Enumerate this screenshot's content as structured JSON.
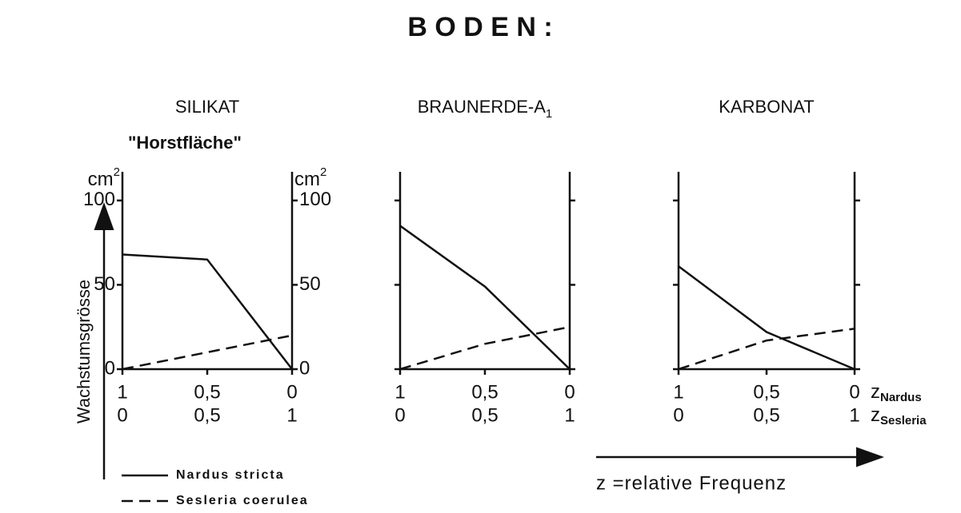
{
  "title": "B O D E N :",
  "y_label": "Wachstumsgrösse",
  "y_quantity": "\"Horstfläche\"",
  "x_axis_names": [
    {
      "main": "z",
      "sub": "Nardus"
    },
    {
      "main": "z",
      "sub": "Sesleria"
    }
  ],
  "x_note": "z =relative Frequenz",
  "chart_data": [
    {
      "type": "line",
      "title": "SILIKAT",
      "y_unit": "cm",
      "y_unit_sup": "2",
      "ytick_labels": true,
      "x": [
        1,
        0.5,
        0
      ],
      "xlim": [
        1,
        0
      ],
      "xticks": [
        1,
        {
          "value": 0.5,
          "label": "0,5"
        },
        0
      ],
      "x2": [
        0,
        0.5,
        1
      ],
      "x2lim": [
        0,
        1
      ],
      "x2ticks": [
        0,
        {
          "value": 0.5,
          "label": "0,5"
        },
        1
      ],
      "ylim": [
        0,
        117
      ],
      "yticks": [
        0,
        50,
        100
      ],
      "series": [
        {
          "name": "Nardus stricta",
          "dash": "solid",
          "color": "#111",
          "values": [
            68,
            65,
            0
          ]
        },
        {
          "name": "Sesleria coerulea",
          "dash": "dashed",
          "color": "#111",
          "values": [
            0,
            10,
            20
          ]
        }
      ]
    },
    {
      "type": "line",
      "title": "BRAUNERDE-A",
      "title_sub": "1",
      "ytick_labels": false,
      "x": [
        1,
        0.5,
        0
      ],
      "xlim": [
        1,
        0
      ],
      "xticks": [
        1,
        {
          "value": 0.5,
          "label": "0,5"
        },
        0
      ],
      "x2": [
        0,
        0.5,
        1
      ],
      "x2lim": [
        0,
        1
      ],
      "x2ticks": [
        0,
        {
          "value": 0.5,
          "label": "0,5"
        },
        1
      ],
      "ylim": [
        0,
        117
      ],
      "yticks": [
        0,
        50,
        100
      ],
      "series": [
        {
          "dash": "solid",
          "color": "#111",
          "values": [
            85,
            49,
            0
          ]
        },
        {
          "dash": "dashed",
          "color": "#111",
          "values": [
            0,
            15,
            25
          ]
        }
      ]
    },
    {
      "type": "line",
      "title": "KARBONAT",
      "ytick_labels": false,
      "x": [
        1,
        0.5,
        0
      ],
      "xlim": [
        1,
        0
      ],
      "xticks": [
        1,
        {
          "value": 0.5,
          "label": "0,5"
        },
        0
      ],
      "x2": [
        0,
        0.5,
        1
      ],
      "x2lim": [
        0,
        1
      ],
      "x2ticks": [
        0,
        {
          "value": 0.5,
          "label": "0,5"
        },
        1
      ],
      "ylim": [
        0,
        117
      ],
      "yticks": [
        0,
        50,
        100
      ],
      "series": [
        {
          "dash": "solid",
          "color": "#111",
          "values": [
            61,
            22,
            0
          ]
        },
        {
          "dash": "dashed",
          "color": "#111",
          "values": [
            0,
            17,
            24
          ]
        }
      ]
    }
  ]
}
